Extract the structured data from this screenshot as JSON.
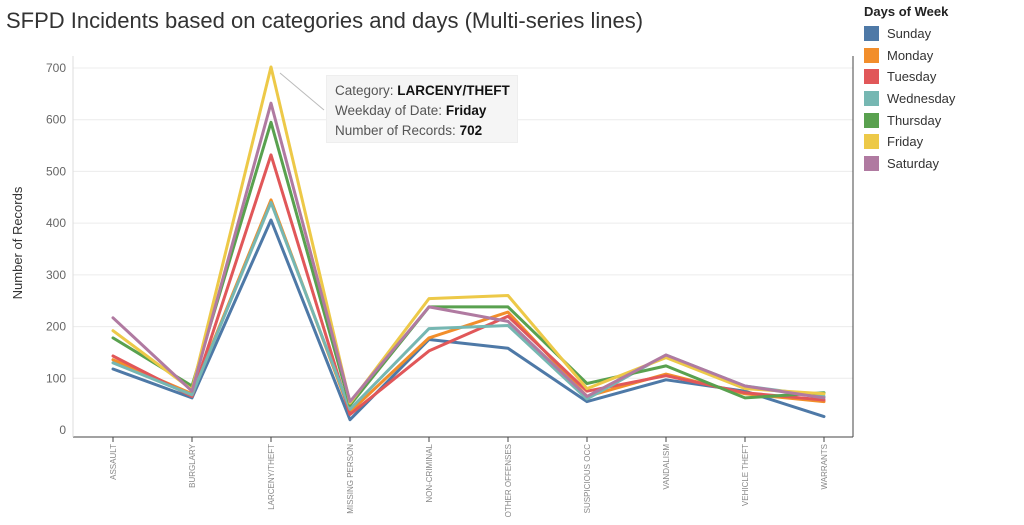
{
  "chart_data": {
    "type": "line",
    "title": "SFPD Incidents based on categories and days (Multi-series lines)",
    "ylabel": "Number of Records",
    "xlabel": "",
    "ylim": [
      0,
      730
    ],
    "yticks": [
      0,
      100,
      200,
      300,
      400,
      500,
      600,
      700
    ],
    "grid": true,
    "legend_title": "Days of Week",
    "legend_position": "top-right",
    "categories": [
      "ASSAULT",
      "BURGLARY",
      "LARCENY/THEFT",
      "MISSING PERSON",
      "NON-CRIMINAL",
      "OTHER OFFENSES",
      "SUSPICIOUS OCC",
      "VANDALISM",
      "VEHICLE THEFT",
      "WARRANTS"
    ],
    "series": [
      {
        "name": "Sunday",
        "color": "#4e79a7",
        "values": [
          118,
          62,
          406,
          20,
          175,
          158,
          55,
          97,
          75,
          26
        ]
      },
      {
        "name": "Monday",
        "color": "#f28e2b",
        "values": [
          136,
          70,
          445,
          35,
          178,
          228,
          65,
          108,
          70,
          55
        ]
      },
      {
        "name": "Tuesday",
        "color": "#e15759",
        "values": [
          143,
          65,
          532,
          30,
          153,
          220,
          75,
          105,
          72,
          58
        ]
      },
      {
        "name": "Wednesday",
        "color": "#76b7b2",
        "values": [
          130,
          68,
          440,
          40,
          196,
          202,
          60,
          145,
          85,
          65
        ]
      },
      {
        "name": "Thursday",
        "color": "#59a14f",
        "values": [
          178,
          85,
          595,
          48,
          238,
          238,
          90,
          124,
          62,
          72
        ]
      },
      {
        "name": "Friday",
        "color": "#edc948",
        "values": [
          192,
          78,
          702,
          52,
          254,
          260,
          80,
          140,
          80,
          70
        ]
      },
      {
        "name": "Saturday",
        "color": "#b07aa1",
        "values": [
          217,
          75,
          632,
          55,
          238,
          210,
          65,
          145,
          85,
          62
        ]
      }
    ]
  },
  "tooltip": {
    "rows": [
      {
        "label": "Category:",
        "value": "LARCENY/THEFT"
      },
      {
        "label": "Weekday of Date:",
        "value": "Friday"
      },
      {
        "label": "Number of Records:",
        "value": "702"
      }
    ]
  }
}
